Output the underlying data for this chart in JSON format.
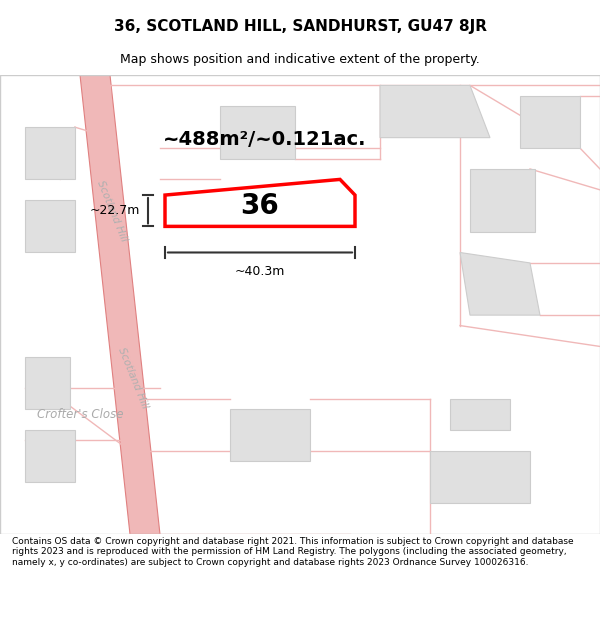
{
  "title": "36, SCOTLAND HILL, SANDHURST, GU47 8JR",
  "subtitle": "Map shows position and indicative extent of the property.",
  "footer": "Contains OS data © Crown copyright and database right 2021. This information is subject to Crown copyright and database rights 2023 and is reproduced with the permission of HM Land Registry. The polygons (including the associated geometry, namely x, y co-ordinates) are subject to Crown copyright and database rights 2023 Ordnance Survey 100026316.",
  "map_bg": "#f5f5f5",
  "road_color": "#f0b8b8",
  "road_outline": "#e08080",
  "building_fill": "#e0e0e0",
  "building_outline": "#cccccc",
  "highlight_color": "#ff0000",
  "text_color": "#000000",
  "dim_color": "#333333",
  "area_label": "~488m²/~0.121ac.",
  "number_label": "36",
  "width_label": "~40.3m",
  "height_label": "~22.7m",
  "road_label": "Scotland Hill",
  "road2_label": "Scotland Hill",
  "close_label": "Crofter's Close"
}
